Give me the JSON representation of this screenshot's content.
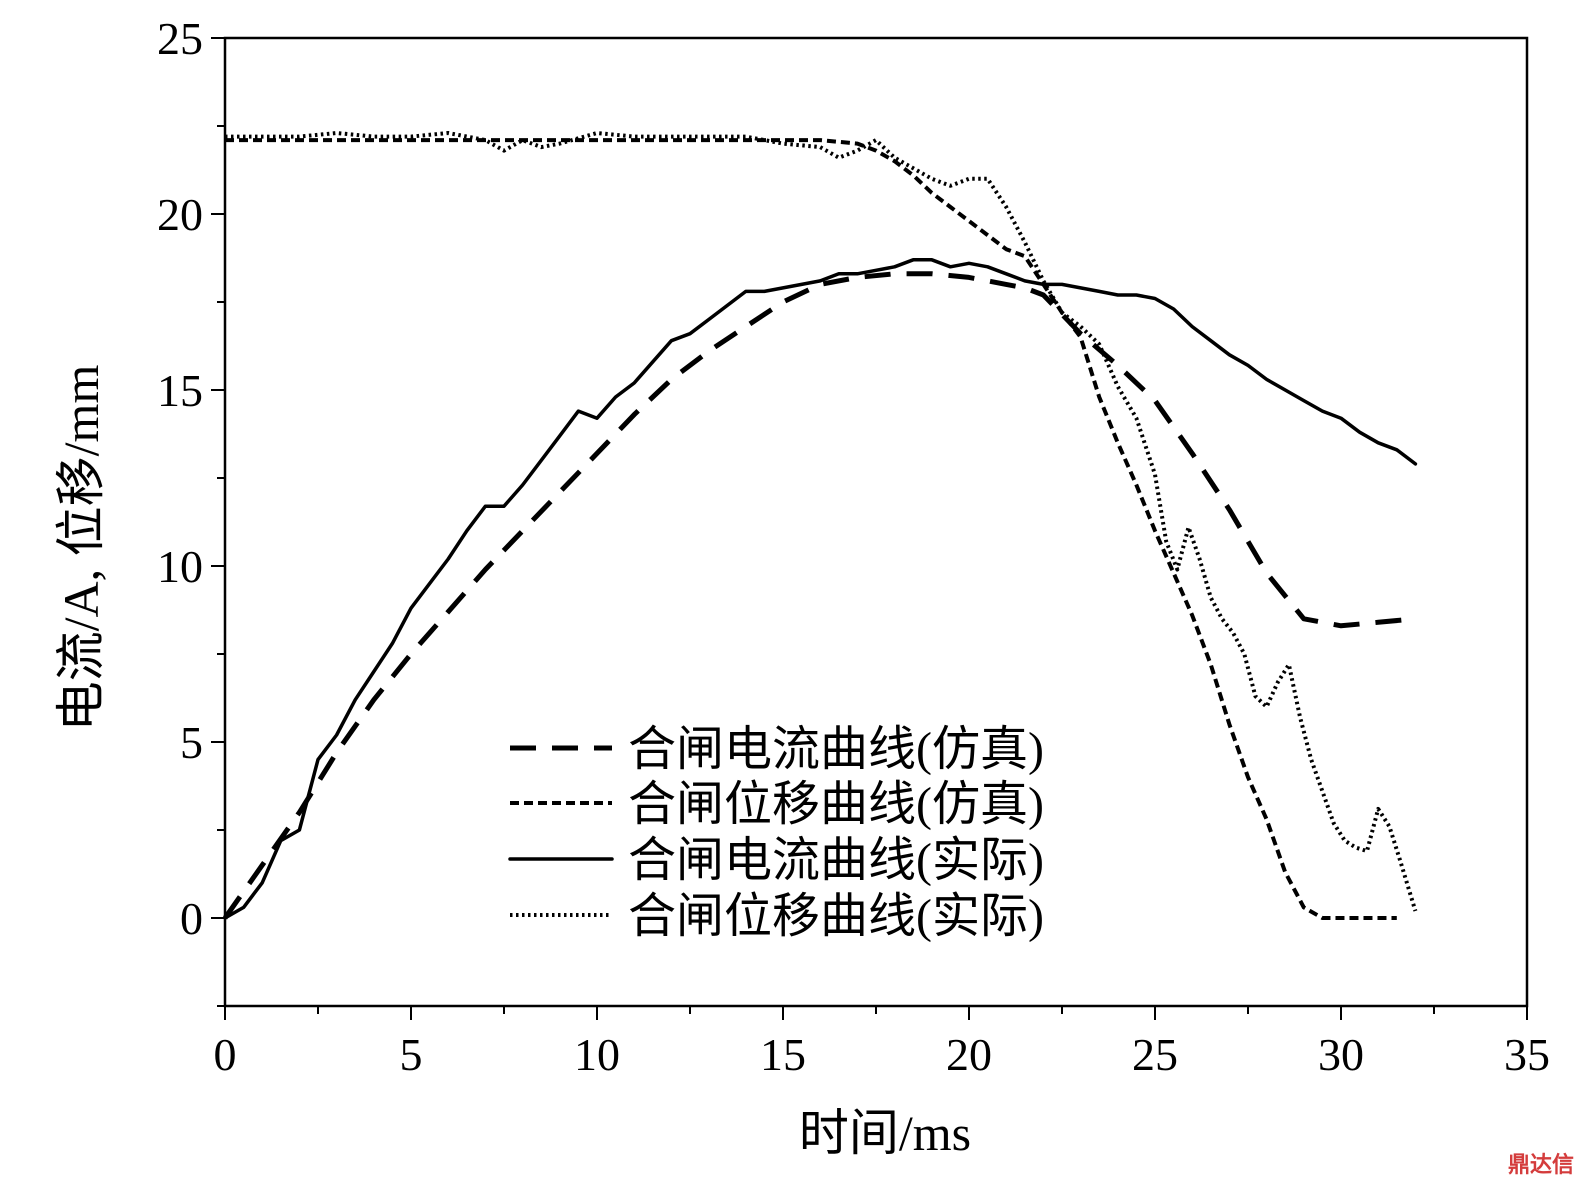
{
  "chart_data": {
    "type": "line",
    "title": "",
    "xlabel": "时间/ms",
    "ylabel": "电流/A, 位移/mm",
    "xlim": [
      0,
      35
    ],
    "ylim": [
      -2.5,
      25
    ],
    "x_ticks": [
      "0",
      "5",
      "10",
      "15",
      "20",
      "25",
      "30",
      "35"
    ],
    "y_ticks": [
      "0",
      "5",
      "10",
      "15",
      "20",
      "25"
    ],
    "grid": false,
    "legend_position": "center-bottom",
    "series": [
      {
        "name": "合闸电流曲线(仿真)",
        "style": "dash-long",
        "x": [
          0,
          1,
          2,
          3,
          4,
          5,
          6,
          7,
          8,
          9,
          10,
          11,
          12,
          13,
          14,
          15,
          16,
          17,
          18,
          19,
          20,
          20.5,
          21,
          21.5,
          22,
          23,
          24,
          25,
          26,
          27,
          28,
          29,
          30,
          31,
          32
        ],
        "values": [
          0,
          1.5,
          3,
          4.7,
          6.2,
          7.5,
          8.7,
          9.9,
          11,
          12.1,
          13.2,
          14.3,
          15.3,
          16.1,
          16.8,
          17.5,
          18,
          18.2,
          18.3,
          18.3,
          18.2,
          18.1,
          18,
          17.9,
          17.7,
          16.6,
          15.7,
          14.7,
          13.2,
          11.6,
          9.8,
          8.5,
          8.3,
          8.4,
          8.5
        ]
      },
      {
        "name": "合闸位移曲线(仿真)",
        "style": "dash-short",
        "x": [
          0,
          2,
          4,
          6,
          8,
          10,
          12,
          14,
          15,
          16,
          17,
          17.5,
          18,
          18.5,
          19,
          19.5,
          20,
          20.5,
          21,
          21.5,
          22,
          22.5,
          23,
          23.5,
          24,
          24.5,
          25,
          25.5,
          26,
          26.5,
          27,
          27.5,
          28,
          28.5,
          29,
          29.5,
          30,
          30.5,
          31,
          31.5
        ],
        "values": [
          22.1,
          22.1,
          22.1,
          22.1,
          22.1,
          22.1,
          22.1,
          22.1,
          22.1,
          22.1,
          22,
          21.8,
          21.5,
          21.1,
          20.6,
          20.2,
          19.8,
          19.4,
          19,
          18.8,
          18,
          17.2,
          16.5,
          14.8,
          13.5,
          12.3,
          11,
          9.8,
          8.6,
          7.2,
          5.5,
          4,
          2.8,
          1.3,
          0.3,
          0,
          0,
          0,
          0,
          0
        ]
      },
      {
        "name": "合闸电流曲线(实际)",
        "style": "solid",
        "x": [
          0,
          0.5,
          1,
          1.5,
          2,
          2.5,
          3,
          3.5,
          4,
          4.5,
          5,
          5.5,
          6,
          6.5,
          7,
          7.5,
          8,
          8.5,
          9,
          9.5,
          10,
          10.5,
          11,
          11.5,
          12,
          12.5,
          13,
          13.5,
          14,
          14.5,
          15,
          15.5,
          16,
          16.5,
          17,
          17.5,
          18,
          18.5,
          19,
          19.5,
          20,
          20.5,
          21,
          21.5,
          22,
          22.5,
          23,
          23.5,
          24,
          24.5,
          25,
          25.5,
          26,
          26.5,
          27,
          27.5,
          28,
          28.5,
          29,
          29.5,
          30,
          30.5,
          31,
          31.5,
          32
        ],
        "values": [
          0,
          0.3,
          1,
          2.2,
          2.5,
          4.5,
          5.2,
          6.2,
          7,
          7.8,
          8.8,
          9.5,
          10.2,
          11,
          11.7,
          11.7,
          12.3,
          13,
          13.7,
          14.4,
          14.2,
          14.8,
          15.2,
          15.8,
          16.4,
          16.6,
          17,
          17.4,
          17.8,
          17.8,
          17.9,
          18,
          18.1,
          18.3,
          18.3,
          18.4,
          18.5,
          18.7,
          18.7,
          18.5,
          18.6,
          18.5,
          18.3,
          18.1,
          18,
          18,
          17.9,
          17.8,
          17.7,
          17.7,
          17.6,
          17.3,
          16.8,
          16.4,
          16,
          15.7,
          15.3,
          15,
          14.7,
          14.4,
          14.2,
          13.8,
          13.5,
          13.3,
          12.9
        ]
      },
      {
        "name": "合闸位移曲线(实际)",
        "style": "dotted",
        "x": [
          0,
          1,
          2,
          3,
          4,
          5,
          6,
          7,
          7.5,
          8,
          8.5,
          9,
          10,
          11,
          12,
          13,
          14,
          15,
          16,
          16.5,
          17,
          17.5,
          18,
          18.5,
          19,
          19.5,
          20,
          20.5,
          21,
          21.5,
          22,
          22.5,
          23,
          23.5,
          24,
          24.5,
          25,
          25.3,
          25.6,
          25.9,
          26.2,
          26.5,
          26.8,
          27.1,
          27.4,
          27.7,
          28,
          28.3,
          28.6,
          28.9,
          29.2,
          29.5,
          29.8,
          30.1,
          30.4,
          30.7,
          31,
          31.3,
          31.6,
          32
        ],
        "values": [
          22.2,
          22.2,
          22.2,
          22.3,
          22.2,
          22.2,
          22.3,
          22.1,
          21.8,
          22.1,
          21.9,
          22,
          22.3,
          22.2,
          22.2,
          22.2,
          22.2,
          22,
          21.9,
          21.6,
          21.8,
          22.1,
          21.6,
          21.3,
          21,
          20.8,
          21,
          21,
          20.2,
          19.2,
          18.1,
          17.2,
          16.8,
          16.3,
          15.1,
          14.2,
          12.6,
          10.7,
          9.9,
          11.1,
          10.2,
          9.1,
          8.5,
          8.1,
          7.5,
          6.3,
          6,
          6.7,
          7.2,
          5.7,
          4.5,
          3.6,
          2.7,
          2.2,
          2,
          1.9,
          3.1,
          2.6,
          1.6,
          0.2
        ]
      }
    ]
  },
  "watermark": "鼎达信"
}
